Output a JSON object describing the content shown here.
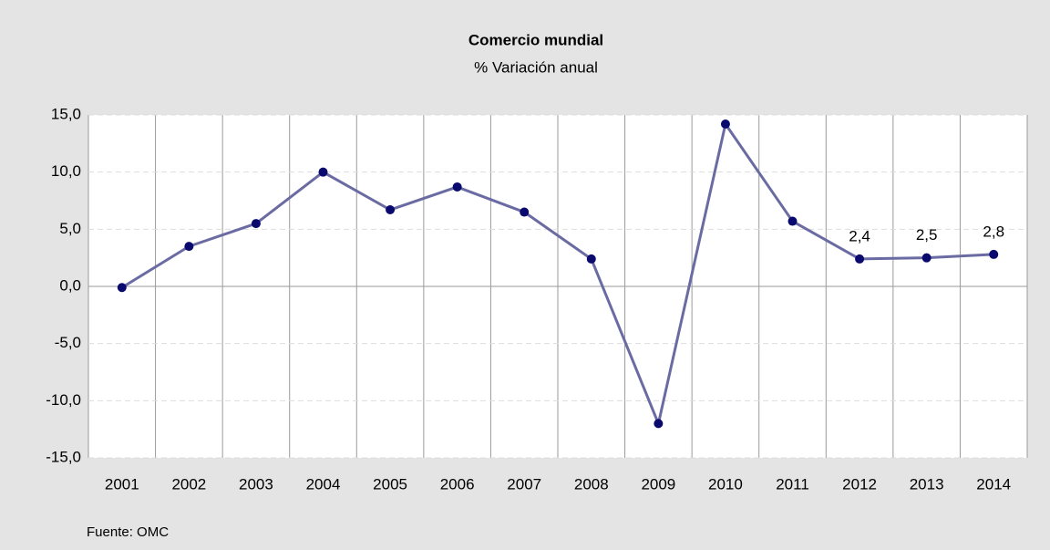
{
  "chart_data": {
    "type": "line",
    "title": "Comercio mundial",
    "subtitle": "% Variación anual",
    "categories": [
      "2001",
      "2002",
      "2003",
      "2004",
      "2005",
      "2006",
      "2007",
      "2008",
      "2009",
      "2010",
      "2011",
      "2012",
      "2013",
      "2014"
    ],
    "series": [
      {
        "name": "Comercio mundial",
        "color": "#6b6ba3",
        "marker_color": "#0a0a6e",
        "values": [
          -0.1,
          3.5,
          5.5,
          10.0,
          6.7,
          8.7,
          6.5,
          2.4,
          -12.0,
          14.2,
          5.7,
          2.4,
          2.5,
          2.8
        ],
        "value_labels": [
          null,
          null,
          null,
          null,
          null,
          null,
          null,
          null,
          null,
          null,
          null,
          "2,4",
          "2,5",
          "2,8"
        ]
      }
    ],
    "ylim": [
      -15,
      15
    ],
    "yticks": [
      {
        "value": -15,
        "label": "-15,0"
      },
      {
        "value": -10,
        "label": "-10,0"
      },
      {
        "value": -5,
        "label": "-5,0"
      },
      {
        "value": 0,
        "label": "0,0"
      },
      {
        "value": 5,
        "label": "5,0"
      },
      {
        "value": 10,
        "label": "10,0"
      },
      {
        "value": 15,
        "label": "15,0"
      }
    ],
    "grid": true,
    "source": "Fuente: OMC"
  }
}
